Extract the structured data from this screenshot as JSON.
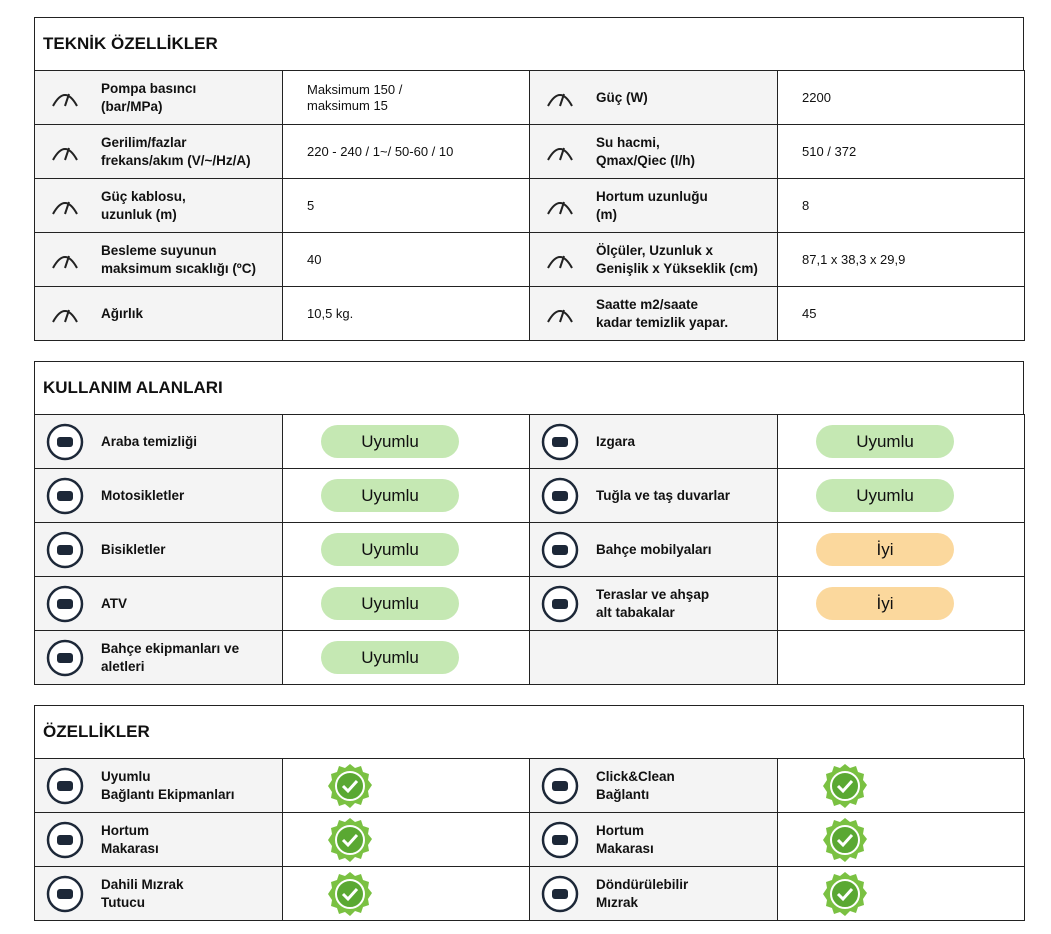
{
  "sections": [
    {
      "title": "TEKNİK ÖZELLİKLER",
      "rows": [
        {
          "left": {
            "label": "Pompa basıncı\n(bar/MPa)",
            "value": "Maksimum 150 /\nmaksimum 15"
          },
          "right": {
            "label": "Güç (W)",
            "value": "2200"
          }
        },
        {
          "left": {
            "label": "Gerilim/fazlar\nfrekans/akım (V/~/Hz/A)",
            "value": "220 - 240 / 1~/ 50-60 / 10"
          },
          "right": {
            "label": "Su hacmi,\nQmax/Qiec (l/h)",
            "value": "510 / 372"
          }
        },
        {
          "left": {
            "label": "Güç kablosu,\nuzunluk (m)",
            "value": "5"
          },
          "right": {
            "label": "Hortum uzunluğu\n(m)",
            "value": "8"
          }
        },
        {
          "left": {
            "label": "Besleme suyunun\nmaksimum sıcaklığı (ºC)",
            "value": "40"
          },
          "right": {
            "label": "Ölçüler, Uzunluk x\nGenişlik x Yükseklik (cm)",
            "value": "87,1 x 38,3 x 29,9"
          }
        },
        {
          "left": {
            "label": "Ağırlık",
            "value": "10,5 kg."
          },
          "right": {
            "label": "Saatte m2/saate\nkadar temizlik yapar.",
            "value": "45"
          }
        }
      ]
    },
    {
      "title": "KULLANIM ALANLARI",
      "rows": [
        {
          "left": {
            "label": "Araba temizliği",
            "status": "Uyumlu"
          },
          "right": {
            "label": "Izgara",
            "status": "Uyumlu"
          }
        },
        {
          "left": {
            "label": "Motosikletler",
            "status": "Uyumlu"
          },
          "right": {
            "label": "Tuğla ve taş duvarlar",
            "status": "Uyumlu"
          }
        },
        {
          "left": {
            "label": "Bisikletler",
            "status": "Uyumlu"
          },
          "right": {
            "label": "Bahçe mobilyaları",
            "status": "İyi"
          }
        },
        {
          "left": {
            "label": "ATV",
            "status": "Uyumlu"
          },
          "right": {
            "label": "Teraslar ve ahşap\nalt tabakalar",
            "status": "İyi"
          }
        },
        {
          "left": {
            "label": "Bahçe ekipmanları ve\naletleri",
            "status": "Uyumlu"
          }
        }
      ]
    },
    {
      "title": "ÖZELLİKLER",
      "rows": [
        {
          "left": {
            "label": "Uyumlu\nBağlantı Ekipmanları"
          },
          "right": {
            "label": "Click&Clean\nBağlantı"
          }
        },
        {
          "left": {
            "label": "Hortum\nMakarası"
          },
          "right": {
            "label": "Hortum\nMakarası"
          }
        },
        {
          "left": {
            "label": "Dahili Mızrak\nTutucu"
          },
          "right": {
            "label": "Döndürülebilir\nMızrak"
          }
        }
      ]
    }
  ]
}
